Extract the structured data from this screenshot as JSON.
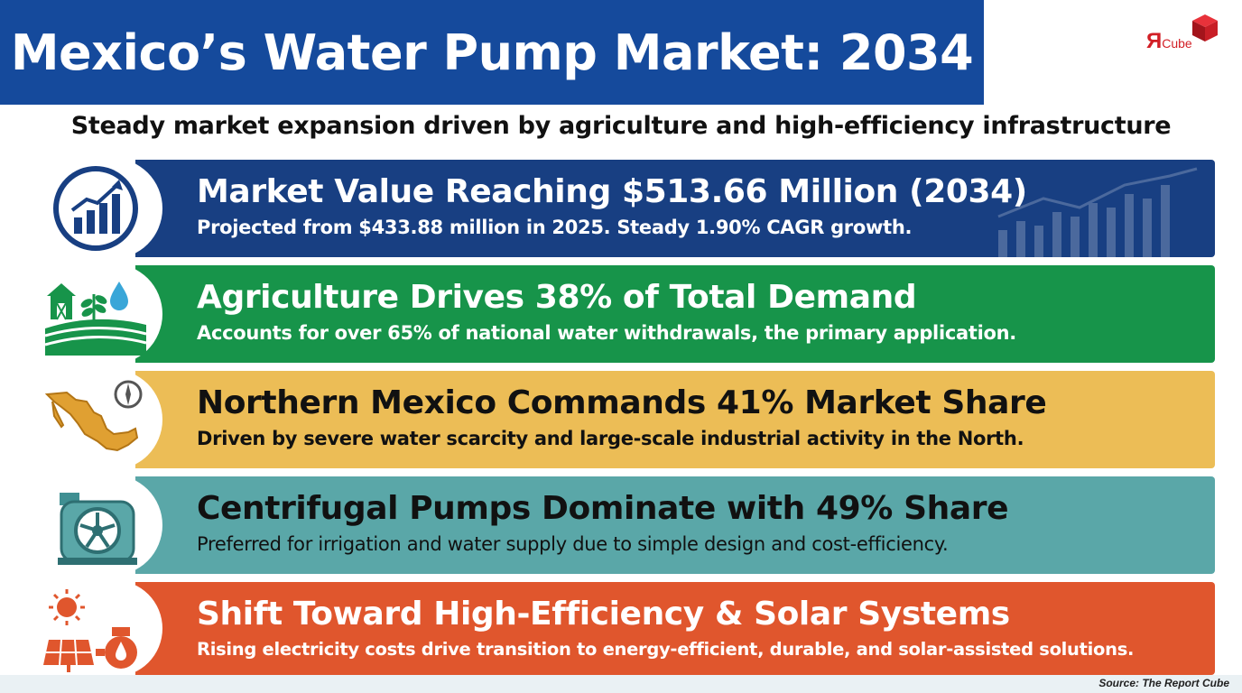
{
  "header": {
    "title": "Mexico’s Water Pump Market: 2034"
  },
  "logo": {
    "text_main": "Я",
    "text_sub": "Cube"
  },
  "subtitle": "Steady market expansion driven by agriculture and high-efficiency infrastructure",
  "rows": [
    {
      "title": "Market Value Reaching $513.66 Million (2034)",
      "description": "Projected from $433.88 million in 2025. Steady 1.90% CAGR growth.",
      "icon": "growth-chart-icon",
      "color": "#183f82"
    },
    {
      "title": "Agriculture Drives 38% of Total Demand",
      "description": "Accounts for over 65% of national water withdrawals, the primary application.",
      "icon": "farm-icon",
      "color": "#17944a"
    },
    {
      "title": "Northern Mexico Commands 41% Market Share",
      "description": "Driven by severe water scarcity and large-scale industrial activity in the North.",
      "icon": "mexico-map-icon",
      "color": "#ecbd56"
    },
    {
      "title": "Centrifugal Pumps Dominate with 49% Share",
      "description": "Preferred for irrigation and water supply due to simple design and cost-efficiency.",
      "icon": "centrifugal-pump-icon",
      "color": "#5aa7a8"
    },
    {
      "title": "Shift Toward High-Efficiency & Solar Systems",
      "description": "Rising electricity costs drive transition to energy-efficient, durable, and solar-assisted solutions.",
      "icon": "solar-pump-icon",
      "color": "#e0562d"
    }
  ],
  "source": "Source: The Report Cube"
}
